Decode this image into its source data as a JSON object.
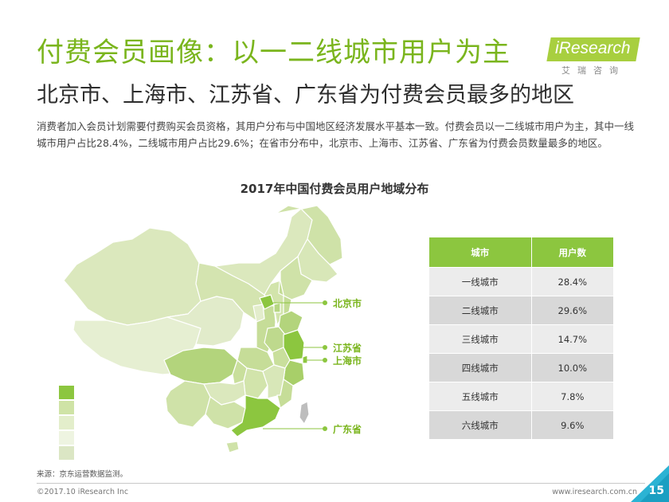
{
  "header": {
    "title": "付费会员画像：以一二线城市用户为主",
    "subtitle": "北京市、上海市、江苏省、广东省为付费会员最多的地区"
  },
  "logo": {
    "text": "iResearch",
    "cn_text": "艾瑞咨询",
    "color": "#a8cf3f"
  },
  "description": "消费者加入会员计划需要付费购买会员资格，其用户分布与中国地区经济发展水平基本一致。付费会员以一二线城市用户为主，其中一线城市用户占比28.4%，二线城市用户占比29.6%；在省市分布中，北京市、上海市、江苏省、广东省为付费会员数量最多的地区。",
  "chart_data": {
    "type": "table",
    "title": "2017年中国付费会员用户地域分布",
    "columns": [
      "城市",
      "用户数"
    ],
    "rows": [
      {
        "city": "一线城市",
        "users": "28.4%"
      },
      {
        "city": "二线城市",
        "users": "29.6%"
      },
      {
        "city": "三线城市",
        "users": "14.7%"
      },
      {
        "city": "四线城市",
        "users": "10.0%"
      },
      {
        "city": "五线城市",
        "users": "7.8%"
      },
      {
        "city": "六线城市",
        "users": "9.6%"
      }
    ],
    "map_labels": [
      "北京市",
      "江苏省",
      "上海市",
      "广东省"
    ],
    "legend_colors": [
      "#8cc63f",
      "#cfe3a6",
      "#e3eecb",
      "#eef4e1",
      "#dbe6c4"
    ],
    "highlight_color": "#8cc63f"
  },
  "footer": {
    "source": "来源：京东运营数据监测。",
    "copyright": "©2017.10 iResearch Inc",
    "website": "www.iresearch.com.cn",
    "page_number": "15"
  }
}
